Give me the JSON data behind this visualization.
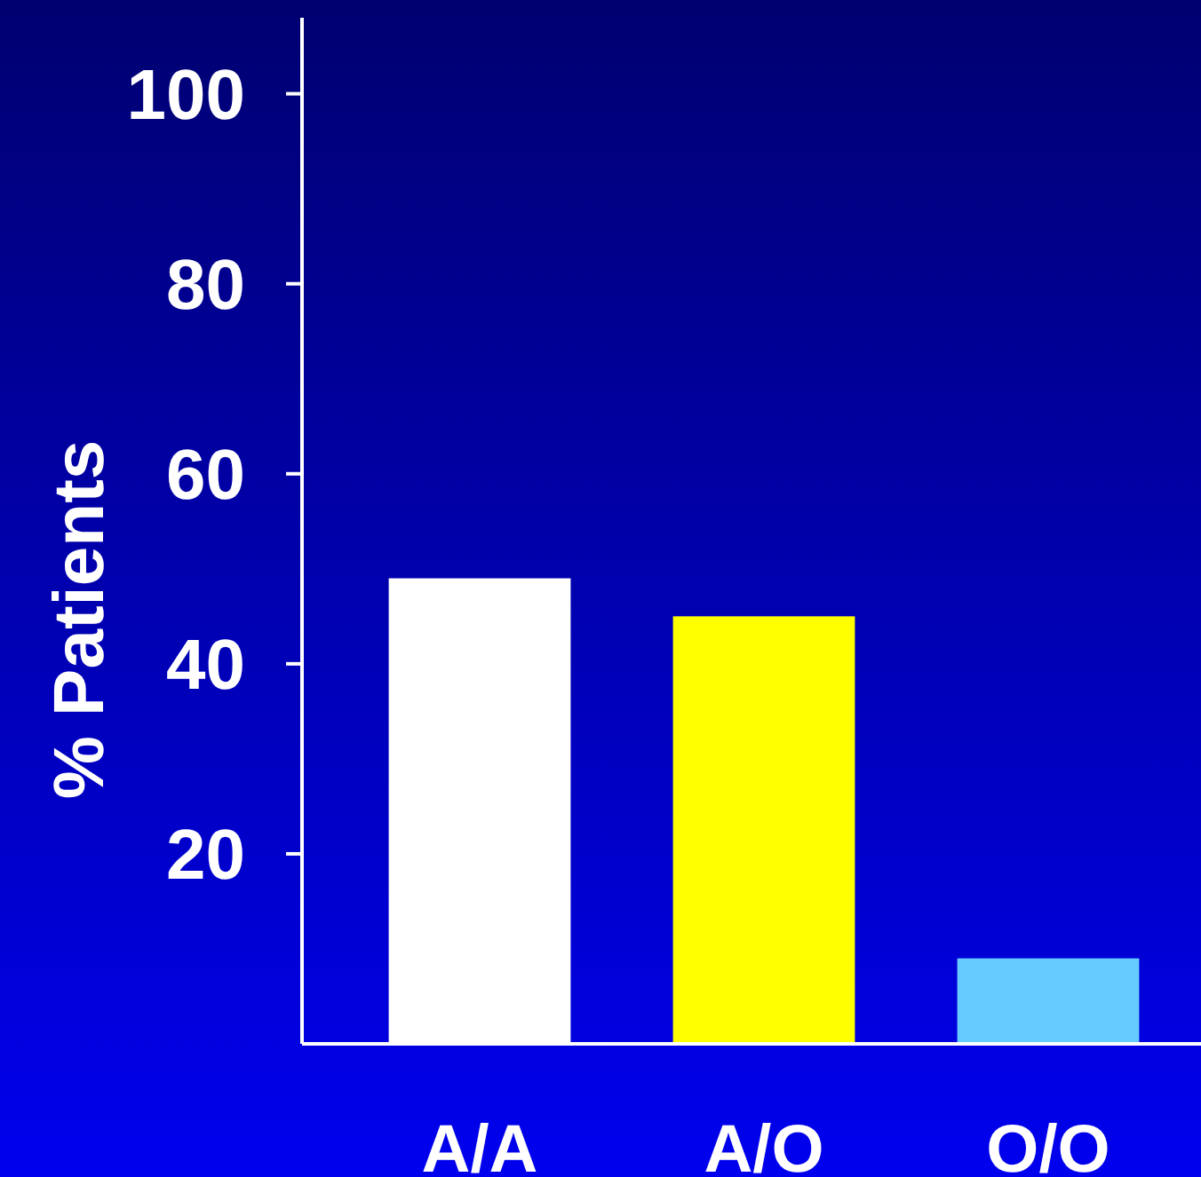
{
  "chart_data": {
    "type": "bar",
    "ylabel": "% Patients",
    "categories": [
      "A/A",
      "A/O",
      "O/O"
    ],
    "values": [
      49,
      45,
      9
    ],
    "colors": [
      "#ffffff",
      "#ffff00",
      "#66ccff"
    ],
    "ylim": [
      0,
      108
    ],
    "yticks": [
      20,
      40,
      60,
      80,
      100
    ],
    "grid": false
  }
}
